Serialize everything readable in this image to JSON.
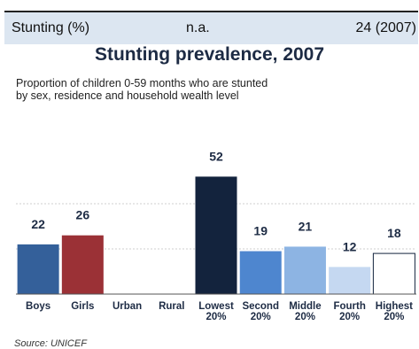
{
  "header_row": {
    "indicator": "Stunting (%)",
    "middle_value": "n.a.",
    "latest_value": "24 (2007)"
  },
  "chart_data": {
    "type": "bar",
    "title": "Stunting prevalence, 2007",
    "subtitle_lines": [
      "Proportion of children 0-59 months who are stunted",
      "by sex, residence and household wealth level"
    ],
    "categories": [
      [
        "Boys"
      ],
      [
        "Girls"
      ],
      [
        "Urban"
      ],
      [
        "Rural"
      ],
      [
        "Lowest",
        "20%"
      ],
      [
        "Second",
        "20%"
      ],
      [
        "Middle",
        "20%"
      ],
      [
        "Fourth",
        "20%"
      ],
      [
        "Highest",
        "20%"
      ]
    ],
    "values": [
      22,
      26,
      null,
      null,
      52,
      19,
      21,
      12,
      18
    ],
    "value_labels": [
      "22",
      "26",
      "",
      "",
      "52",
      "19",
      "21",
      "12",
      "18"
    ],
    "colors": [
      "#34609a",
      "#9b3136",
      null,
      null,
      "#13233d",
      "#4e86cf",
      "#8db4e3",
      "#c5d8f1",
      "#ffffff"
    ],
    "ylim": [
      0,
      60
    ],
    "grid": true,
    "source": "Source: UNICEF"
  }
}
